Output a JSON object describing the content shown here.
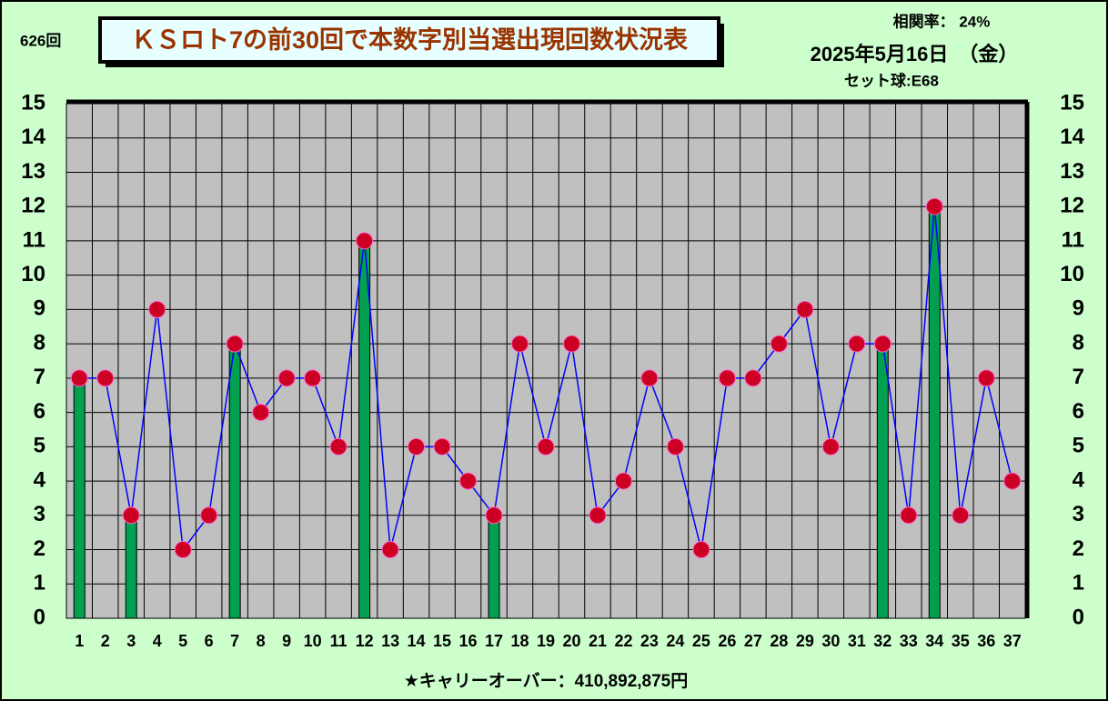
{
  "chart_data": {
    "type": "bar_line",
    "issue": "626回",
    "title": "ＫＳロト7の前30回で本数字別当選出現回数状況表",
    "correlation": "相関率：  24%",
    "date": "2025年5月16日　（金）",
    "set_ball": "セット球:E68",
    "footer": "★キャリーオーバー：410,892,875円",
    "categories": [
      "1",
      "2",
      "3",
      "4",
      "5",
      "6",
      "7",
      "8",
      "9",
      "10",
      "11",
      "12",
      "13",
      "14",
      "15",
      "16",
      "17",
      "18",
      "19",
      "20",
      "21",
      "22",
      "23",
      "24",
      "25",
      "26",
      "27",
      "28",
      "29",
      "30",
      "31",
      "32",
      "33",
      "34",
      "35",
      "36",
      "37"
    ],
    "series": [
      {
        "type": "bar",
        "color": "#00a050",
        "values": [
          7,
          null,
          3,
          null,
          null,
          null,
          8,
          null,
          null,
          null,
          null,
          11,
          null,
          null,
          null,
          null,
          3,
          null,
          null,
          null,
          null,
          null,
          null,
          null,
          null,
          null,
          null,
          null,
          null,
          null,
          null,
          8,
          null,
          12,
          null,
          null,
          null
        ]
      },
      {
        "type": "line",
        "color": "#0000ff",
        "marker_color": "#cc0022",
        "values": [
          7,
          7,
          3,
          9,
          2,
          3,
          8,
          6,
          7,
          7,
          5,
          11,
          2,
          5,
          5,
          4,
          3,
          8,
          5,
          8,
          3,
          4,
          7,
          5,
          2,
          7,
          7,
          8,
          9,
          5,
          8,
          8,
          3,
          12,
          3,
          7,
          4
        ]
      }
    ],
    "ylim": [
      0,
      15
    ],
    "yticks": [
      0,
      1,
      2,
      3,
      4,
      5,
      6,
      7,
      8,
      9,
      10,
      11,
      12,
      13,
      14,
      15
    ],
    "grid": true
  }
}
